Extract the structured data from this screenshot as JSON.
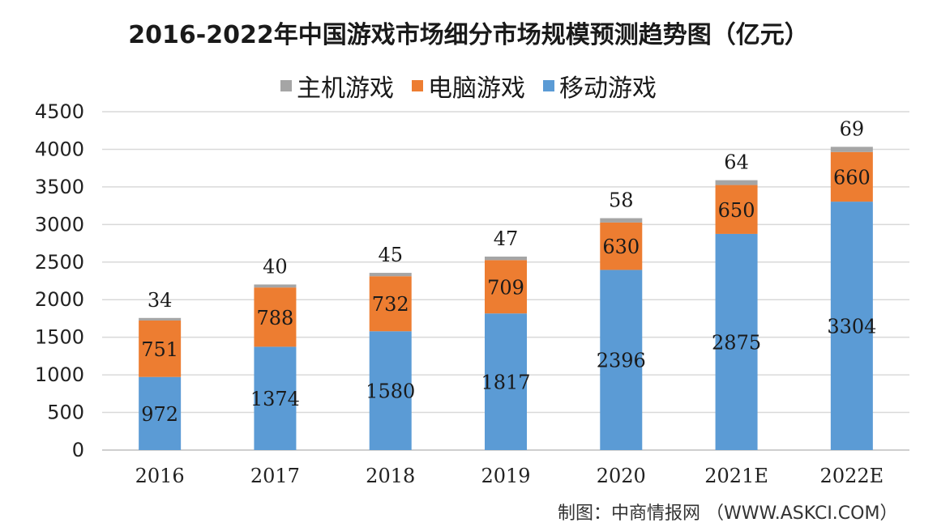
{
  "credit": "制图：中商情报网 （WWW.ASKCI.COM）",
  "colors": {
    "console": "#a5a5a5",
    "pc": "#ed7d31",
    "mobile": "#5b9bd5",
    "grid": "#d9d9d9"
  },
  "chart_data": {
    "type": "bar",
    "stacked": true,
    "title": "2016-2022年中国游戏市场细分市场规模预测趋势图（亿元）",
    "categories": [
      "2016",
      "2017",
      "2018",
      "2019",
      "2020",
      "2021E",
      "2022E"
    ],
    "series": [
      {
        "name": "移动游戏",
        "key": "mobile",
        "values": [
          972,
          1374,
          1580,
          1817,
          2396,
          2875,
          3304
        ]
      },
      {
        "name": "电脑游戏",
        "key": "pc",
        "values": [
          751,
          788,
          732,
          709,
          630,
          650,
          660
        ]
      },
      {
        "name": "主机游戏",
        "key": "console",
        "values": [
          34,
          40,
          45,
          47,
          58,
          64,
          69
        ]
      }
    ],
    "legend_order": [
      "主机游戏",
      "电脑游戏",
      "移动游戏"
    ],
    "ylim": [
      0,
      4500
    ],
    "yticks": [
      0,
      500,
      1000,
      1500,
      2000,
      2500,
      3000,
      3500,
      4000,
      4500
    ],
    "grid": true,
    "legend_position": "top"
  }
}
